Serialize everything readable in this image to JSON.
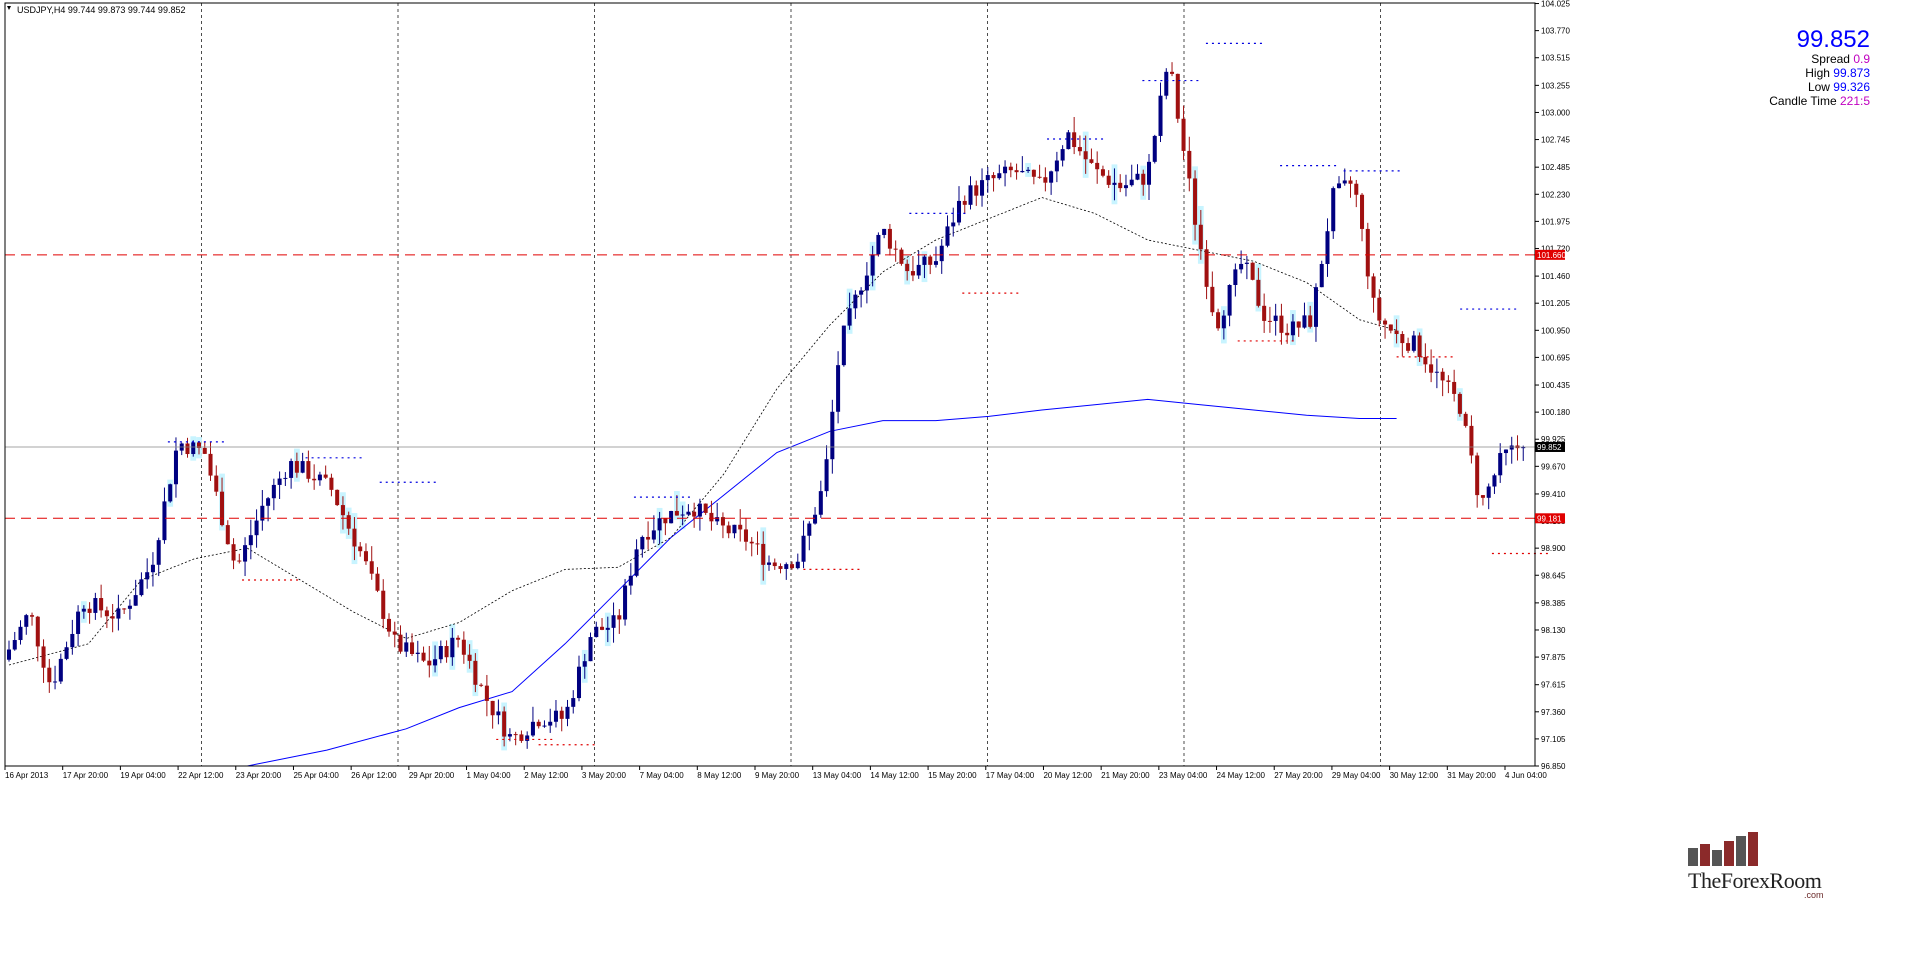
{
  "window": {
    "header_text": "USDJPY,H4  99.744 99.873 99.744 99.852"
  },
  "info_panel": {
    "price": "99.852",
    "rows": [
      {
        "label": "Spread",
        "value": "0.9"
      },
      {
        "label": "High",
        "value": "99.873"
      },
      {
        "label": "Low",
        "value": "99.326"
      },
      {
        "label": "Candle Time",
        "value": "221:5"
      }
    ]
  },
  "logo": {
    "name": "TheForexRoom",
    "suffix": ".com"
  },
  "colors": {
    "bull": "#000080",
    "bear": "#a01010",
    "ma_slow": "#0000ff",
    "ma_fast": "#000000",
    "support": "#e00000",
    "resist": "#0000e0",
    "highlight": "#c8f4ff"
  },
  "chart_data": {
    "type": "candlestick",
    "symbol": "USDJPY",
    "timeframe": "H4",
    "ohlc": {
      "open": 99.744,
      "high": 99.873,
      "low": 99.744,
      "close": 99.852
    },
    "ylim": [
      96.85,
      104.03
    ],
    "y_ticks": [
      "104.025",
      "103.770",
      "103.515",
      "103.255",
      "103.000",
      "102.745",
      "102.485",
      "102.230",
      "101.975",
      "101.720",
      "101.460",
      "101.205",
      "100.950",
      "100.695",
      "100.435",
      "100.180",
      "99.925",
      "99.670",
      "99.410",
      "99.155",
      "98.900",
      "98.645",
      "98.385",
      "98.130",
      "97.875",
      "97.615",
      "97.360",
      "97.105",
      "96.850"
    ],
    "x_ticks": [
      "16 Apr 2013",
      "17 Apr 20:00",
      "19 Apr 04:00",
      "22 Apr 12:00",
      "23 Apr 20:00",
      "25 Apr 04:00",
      "26 Apr 12:00",
      "29 Apr 20:00",
      "1 May 04:00",
      "2 May 12:00",
      "3 May 20:00",
      "7 May 04:00",
      "8 May 12:00",
      "9 May 20:00",
      "13 May 04:00",
      "14 May 12:00",
      "15 May 20:00",
      "17 May 04:00",
      "20 May 12:00",
      "21 May 20:00",
      "23 May 04:00",
      "24 May 12:00",
      "27 May 20:00",
      "29 May 04:00",
      "30 May 12:00",
      "31 May 20:00",
      "4 Jun 04:00"
    ],
    "horizontal_lines": [
      {
        "price": 101.66,
        "label": "101.660"
      },
      {
        "price": 99.181,
        "label": "99.181"
      }
    ],
    "current_price_label": "99.852",
    "ma_fast": [
      [
        0,
        97.8
      ],
      [
        15,
        98.0
      ],
      [
        25,
        98.6
      ],
      [
        35,
        98.8
      ],
      [
        45,
        98.9
      ],
      [
        55,
        98.6
      ],
      [
        65,
        98.3
      ],
      [
        75,
        98.05
      ],
      [
        85,
        98.2
      ],
      [
        95,
        98.5
      ],
      [
        105,
        98.7
      ],
      [
        115,
        98.72
      ],
      [
        125,
        99.0
      ],
      [
        135,
        99.6
      ],
      [
        145,
        100.4
      ],
      [
        155,
        101.0
      ],
      [
        165,
        101.5
      ],
      [
        175,
        101.8
      ],
      [
        185,
        102.0
      ],
      [
        195,
        102.2
      ],
      [
        205,
        102.05
      ],
      [
        215,
        101.8
      ],
      [
        225,
        101.7
      ],
      [
        235,
        101.6
      ],
      [
        245,
        101.4
      ],
      [
        255,
        101.05
      ],
      [
        262,
        100.95
      ]
    ],
    "ma_slow": [
      [
        45,
        96.85
      ],
      [
        60,
        97.0
      ],
      [
        75,
        97.2
      ],
      [
        85,
        97.4
      ],
      [
        95,
        97.55
      ],
      [
        105,
        98.0
      ],
      [
        115,
        98.5
      ],
      [
        125,
        99.0
      ],
      [
        135,
        99.4
      ],
      [
        145,
        99.8
      ],
      [
        155,
        100.0
      ],
      [
        165,
        100.1
      ],
      [
        175,
        100.1
      ],
      [
        185,
        100.14
      ],
      [
        195,
        100.2
      ],
      [
        205,
        100.25
      ],
      [
        215,
        100.3
      ],
      [
        225,
        100.25
      ],
      [
        235,
        100.2
      ],
      [
        245,
        100.15
      ],
      [
        255,
        100.12
      ],
      [
        262,
        100.12
      ]
    ]
  }
}
